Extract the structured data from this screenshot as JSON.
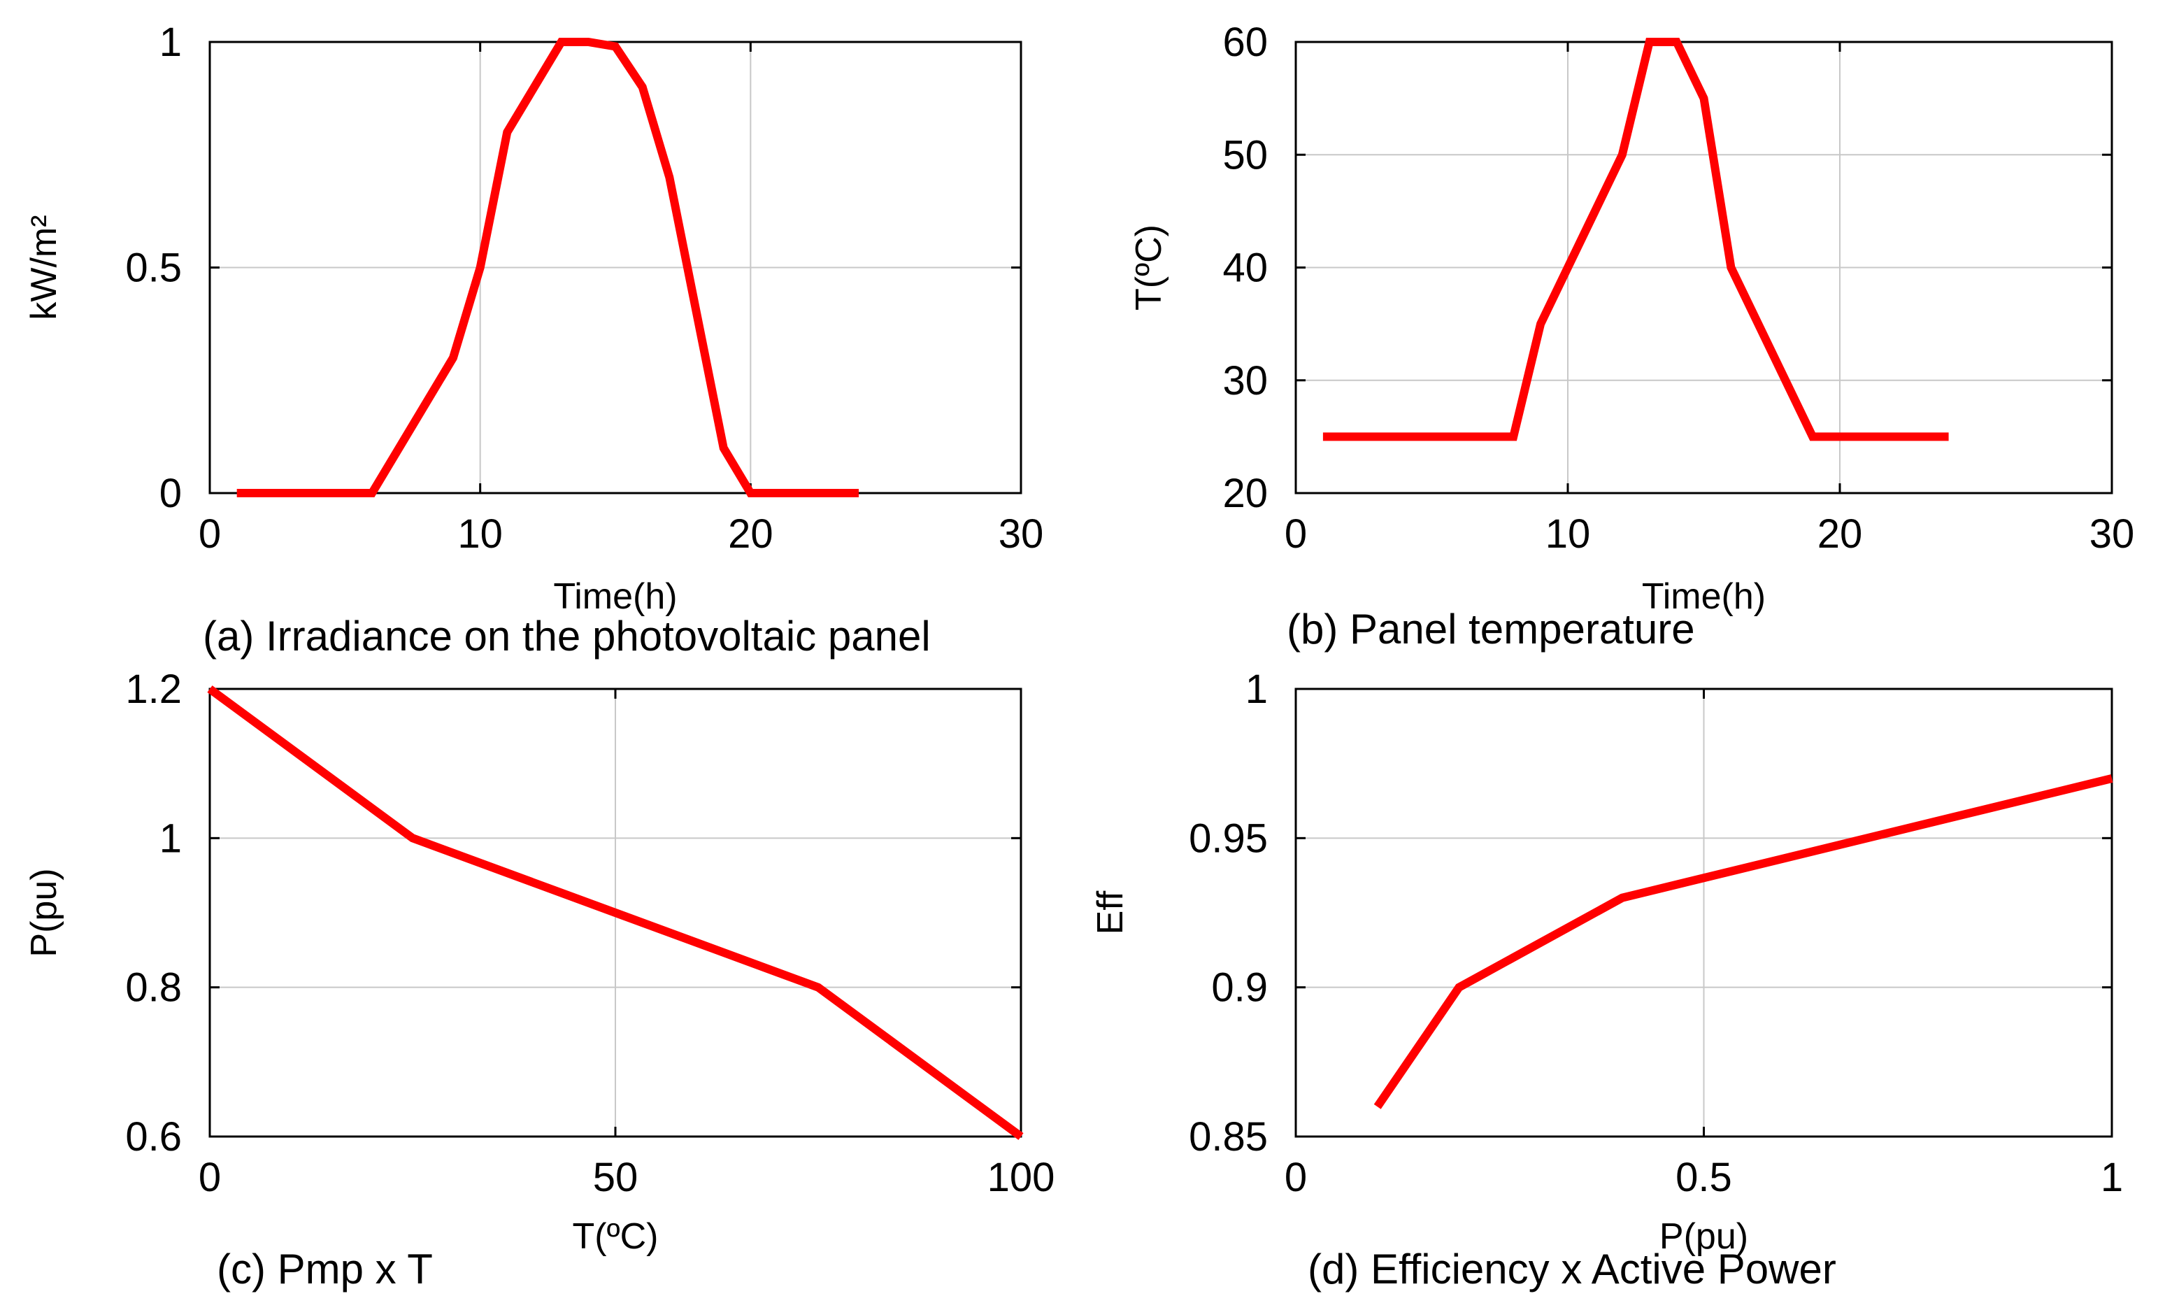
{
  "chart_data": [
    {
      "id": "a",
      "type": "line",
      "title": "",
      "caption": "(a) Irradiance on the photovoltaic panel",
      "xlabel": "Time(h)",
      "ylabel": "kW/m²",
      "xlim": [
        0,
        30
      ],
      "ylim": [
        0,
        1
      ],
      "xticks": [
        0,
        10,
        20,
        30
      ],
      "yticks": [
        0,
        0.5,
        1
      ],
      "xtick_labels": [
        "0",
        "10",
        "20",
        "30"
      ],
      "ytick_labels": [
        "0",
        "0.5",
        "1"
      ],
      "grid": true,
      "series": [
        {
          "name": "Irradiance",
          "color": "#ff0000",
          "x": [
            1,
            6,
            9,
            10,
            11,
            13,
            14,
            15,
            16,
            17,
            18,
            19,
            20,
            24
          ],
          "y": [
            0,
            0,
            0.3,
            0.5,
            0.8,
            1.0,
            1.0,
            0.99,
            0.9,
            0.7,
            0.4,
            0.1,
            0,
            0
          ]
        }
      ]
    },
    {
      "id": "b",
      "type": "line",
      "title": "",
      "caption": "(b) Panel temperature",
      "xlabel": "Time(h)",
      "ylabel": "T(ºC)",
      "xlim": [
        0,
        30
      ],
      "ylim": [
        20,
        60
      ],
      "xticks": [
        0,
        10,
        20,
        30
      ],
      "yticks": [
        20,
        30,
        40,
        50,
        60
      ],
      "xtick_labels": [
        "0",
        "10",
        "20",
        "30"
      ],
      "ytick_labels": [
        "20",
        "30",
        "40",
        "50",
        "60"
      ],
      "grid": true,
      "series": [
        {
          "name": "Temperature",
          "color": "#ff0000",
          "x": [
            1,
            8,
            9,
            12,
            13,
            14,
            15,
            16,
            19,
            24
          ],
          "y": [
            25,
            25,
            35,
            50,
            60,
            60,
            55,
            40,
            25,
            25
          ]
        }
      ]
    },
    {
      "id": "c",
      "type": "line",
      "title": "",
      "caption": "(c) Pmp x T",
      "xlabel": "T(ºC)",
      "ylabel": "P(pu)",
      "xlim": [
        0,
        100
      ],
      "ylim": [
        0.6,
        1.2
      ],
      "xticks": [
        0,
        50,
        100
      ],
      "yticks": [
        0.6,
        0.8,
        1,
        1.2
      ],
      "xtick_labels": [
        "0",
        "50",
        "100"
      ],
      "ytick_labels": [
        "0.6",
        "0.8",
        "1",
        "1.2"
      ],
      "grid": true,
      "series": [
        {
          "name": "Pmp",
          "color": "#ff0000",
          "x": [
            0,
            25,
            75,
            100
          ],
          "y": [
            1.2,
            1.0,
            0.8,
            0.6
          ]
        }
      ]
    },
    {
      "id": "d",
      "type": "line",
      "title": "",
      "caption": "(d) Efficiency x Active Power",
      "xlabel": "P(pu)",
      "ylabel": "Eff",
      "xlim": [
        0,
        1
      ],
      "ylim": [
        0.85,
        1
      ],
      "xticks": [
        0,
        0.5,
        1
      ],
      "yticks": [
        0.85,
        0.9,
        0.95,
        1
      ],
      "xtick_labels": [
        "0",
        "0.5",
        "1"
      ],
      "ytick_labels": [
        "0.85",
        "0.9",
        "0.95",
        "1"
      ],
      "grid": true,
      "series": [
        {
          "name": "Efficiency",
          "color": "#ff0000",
          "x": [
            0.1,
            0.2,
            0.4,
            1.0
          ],
          "y": [
            0.86,
            0.9,
            0.93,
            0.97
          ]
        }
      ]
    }
  ]
}
